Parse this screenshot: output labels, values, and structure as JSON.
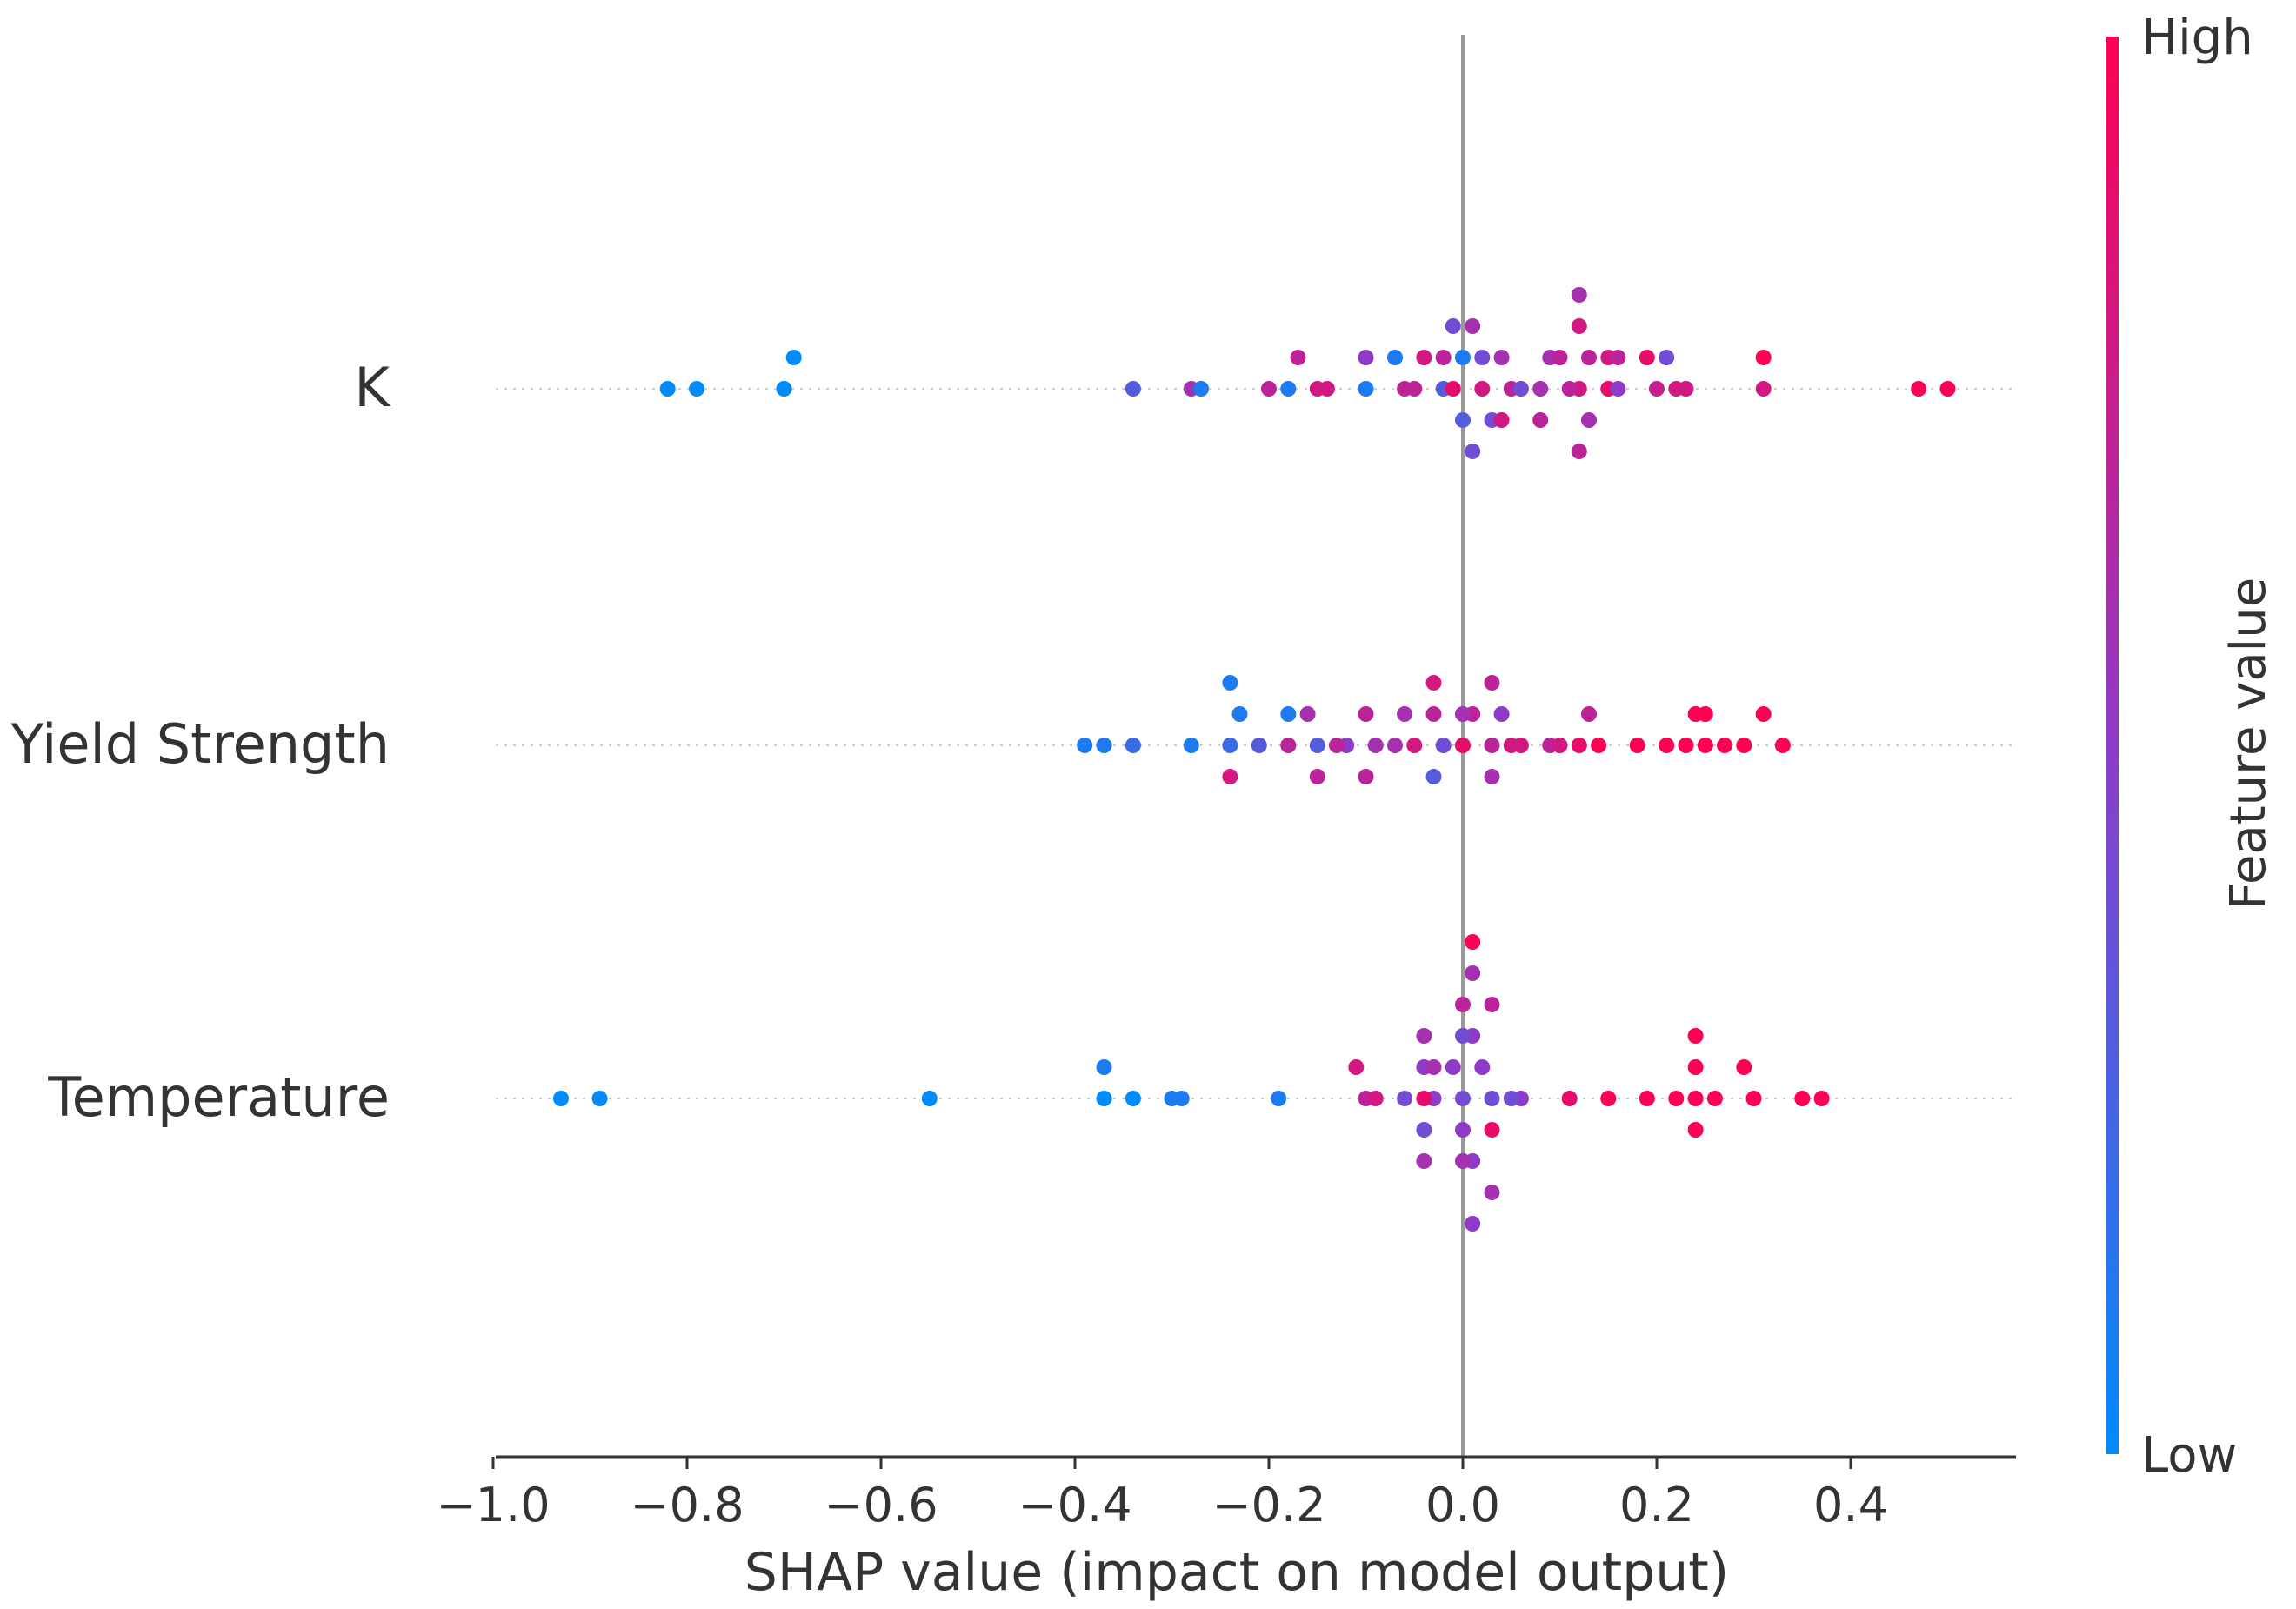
{
  "chart_data": {
    "type": "scatter",
    "subtype": "shap-beeswarm",
    "title": "",
    "xlabel": "SHAP value (impact on model output)",
    "ylabel": "",
    "xlim": [
      -1.02,
      0.57
    ],
    "xticks": [
      -1.0,
      -0.8,
      -0.6,
      -0.4,
      -0.2,
      0.0,
      0.2,
      0.4
    ],
    "xtick_labels": [
      "−1.0",
      "−0.8",
      "−0.6",
      "−0.4",
      "−0.2",
      "0.0",
      "0.2",
      "0.4"
    ],
    "colorbar": {
      "label": "Feature value",
      "high_label": "High",
      "low_label": "Low",
      "low_color": "#008bfb",
      "high_color": "#ff0052"
    },
    "features": [
      {
        "name": "K",
        "points": [
          {
            "x": -0.82,
            "v": 0.0
          },
          {
            "x": -0.79,
            "v": 0.0
          },
          {
            "x": -0.7,
            "v": 0.0
          },
          {
            "x": -0.69,
            "v": 0.0
          },
          {
            "x": -0.34,
            "v": 0.3
          },
          {
            "x": -0.28,
            "v": 0.6
          },
          {
            "x": -0.27,
            "v": 0.1
          },
          {
            "x": -0.2,
            "v": 0.7
          },
          {
            "x": -0.18,
            "v": 0.1
          },
          {
            "x": -0.15,
            "v": 0.8
          },
          {
            "x": -0.1,
            "v": 0.1
          },
          {
            "x": -0.05,
            "v": 0.7
          },
          {
            "x": -0.02,
            "v": 0.3
          },
          {
            "x": -0.01,
            "v": 0.9
          },
          {
            "x": 0.02,
            "v": 0.8
          },
          {
            "x": 0.05,
            "v": 0.7
          },
          {
            "x": 0.08,
            "v": 0.6
          },
          {
            "x": 0.12,
            "v": 0.8
          },
          {
            "x": 0.15,
            "v": 0.9
          },
          {
            "x": 0.2,
            "v": 0.75
          },
          {
            "x": 0.23,
            "v": 0.8
          },
          {
            "x": 0.31,
            "v": 0.8
          },
          {
            "x": 0.47,
            "v": 1.0
          },
          {
            "x": 0.5,
            "v": 1.0
          },
          {
            "x": -0.17,
            "v": 0.7
          },
          {
            "x": -0.14,
            "v": 0.8
          },
          {
            "x": -0.1,
            "v": 0.5
          },
          {
            "x": -0.06,
            "v": 0.7
          },
          {
            "x": -0.04,
            "v": 0.8
          },
          {
            "x": 0.0,
            "v": 0.1
          },
          {
            "x": 0.02,
            "v": 0.4
          },
          {
            "x": 0.04,
            "v": 0.6
          },
          {
            "x": 0.09,
            "v": 0.6
          },
          {
            "x": 0.11,
            "v": 0.7
          },
          {
            "x": 0.13,
            "v": 0.7
          },
          {
            "x": 0.15,
            "v": 0.8
          },
          {
            "x": 0.19,
            "v": 0.9
          },
          {
            "x": 0.22,
            "v": 0.8
          },
          {
            "x": 0.31,
            "v": 1.0
          },
          {
            "x": 0.0,
            "v": 0.3
          },
          {
            "x": 0.03,
            "v": 0.4
          },
          {
            "x": 0.06,
            "v": 0.4
          },
          {
            "x": 0.1,
            "v": 0.7
          },
          {
            "x": 0.13,
            "v": 0.6
          },
          {
            "x": 0.16,
            "v": 0.5
          },
          {
            "x": 0.12,
            "v": 0.8
          },
          {
            "x": -0.07,
            "v": 0.1
          },
          {
            "x": -0.02,
            "v": 0.7
          },
          {
            "x": 0.01,
            "v": 0.6
          },
          {
            "x": 0.04,
            "v": 0.8
          },
          {
            "x": 0.08,
            "v": 0.7
          },
          {
            "x": 0.12,
            "v": 0.7
          },
          {
            "x": 0.16,
            "v": 0.7
          },
          {
            "x": 0.21,
            "v": 0.4
          },
          {
            "x": -0.01,
            "v": 0.4
          },
          {
            "x": 0.01,
            "v": 0.4
          },
          {
            "x": 0.12,
            "v": 0.6
          }
        ]
      },
      {
        "name": "Yield Strength",
        "points": [
          {
            "x": -0.39,
            "v": 0.1
          },
          {
            "x": -0.37,
            "v": 0.1
          },
          {
            "x": -0.34,
            "v": 0.2
          },
          {
            "x": -0.28,
            "v": 0.1
          },
          {
            "x": -0.24,
            "v": 0.2
          },
          {
            "x": -0.21,
            "v": 0.3
          },
          {
            "x": -0.18,
            "v": 0.7
          },
          {
            "x": -0.15,
            "v": 0.3
          },
          {
            "x": -0.12,
            "v": 0.5
          },
          {
            "x": -0.09,
            "v": 0.6
          },
          {
            "x": -0.05,
            "v": 0.8
          },
          {
            "x": -0.02,
            "v": 0.4
          },
          {
            "x": 0.0,
            "v": 0.9
          },
          {
            "x": 0.03,
            "v": 0.7
          },
          {
            "x": 0.06,
            "v": 0.8
          },
          {
            "x": 0.09,
            "v": 0.7
          },
          {
            "x": 0.12,
            "v": 0.9
          },
          {
            "x": 0.18,
            "v": 1.0
          },
          {
            "x": 0.21,
            "v": 1.0
          },
          {
            "x": 0.23,
            "v": 1.0
          },
          {
            "x": 0.25,
            "v": 1.0
          },
          {
            "x": 0.27,
            "v": 1.0
          },
          {
            "x": 0.29,
            "v": 1.0
          },
          {
            "x": 0.31,
            "v": 1.0
          },
          {
            "x": 0.33,
            "v": 1.0
          },
          {
            "x": -0.23,
            "v": 0.1
          },
          {
            "x": -0.16,
            "v": 0.6
          },
          {
            "x": -0.13,
            "v": 0.7
          },
          {
            "x": -0.07,
            "v": 0.6
          },
          {
            "x": -0.03,
            "v": 0.7
          },
          {
            "x": 0.01,
            "v": 0.7
          },
          {
            "x": 0.05,
            "v": 0.8
          },
          {
            "x": 0.1,
            "v": 0.8
          },
          {
            "x": -0.24,
            "v": 0.8
          },
          {
            "x": -0.18,
            "v": 0.1
          },
          {
            "x": -0.15,
            "v": 0.7
          },
          {
            "x": -0.1,
            "v": 0.7
          },
          {
            "x": -0.06,
            "v": 0.6
          },
          {
            "x": -0.03,
            "v": 0.3
          },
          {
            "x": 0.0,
            "v": 0.6
          },
          {
            "x": 0.03,
            "v": 0.6
          },
          {
            "x": 0.14,
            "v": 1.0
          },
          {
            "x": 0.24,
            "v": 1.0
          },
          {
            "x": 0.25,
            "v": 1.0
          },
          {
            "x": 0.03,
            "v": 0.7
          },
          {
            "x": -0.24,
            "v": 0.1
          },
          {
            "x": -0.1,
            "v": 0.7
          },
          {
            "x": -0.03,
            "v": 0.8
          },
          {
            "x": 0.04,
            "v": 0.5
          },
          {
            "x": 0.13,
            "v": 0.7
          }
        ]
      },
      {
        "name": "Temperature",
        "points": [
          {
            "x": -0.93,
            "v": 0.0
          },
          {
            "x": -0.89,
            "v": 0.0
          },
          {
            "x": -0.55,
            "v": 0.0
          },
          {
            "x": -0.37,
            "v": 0.0
          },
          {
            "x": -0.34,
            "v": 0.0
          },
          {
            "x": -0.3,
            "v": 0.1
          },
          {
            "x": -0.29,
            "v": 0.1
          },
          {
            "x": -0.19,
            "v": 0.1
          },
          {
            "x": -0.1,
            "v": 0.7
          },
          {
            "x": -0.06,
            "v": 0.4
          },
          {
            "x": -0.03,
            "v": 0.5
          },
          {
            "x": 0.0,
            "v": 0.4
          },
          {
            "x": 0.03,
            "v": 0.4
          },
          {
            "x": 0.06,
            "v": 0.5
          },
          {
            "x": 0.11,
            "v": 0.9
          },
          {
            "x": 0.15,
            "v": 1.0
          },
          {
            "x": 0.19,
            "v": 1.0
          },
          {
            "x": 0.22,
            "v": 1.0
          },
          {
            "x": 0.26,
            "v": 1.0
          },
          {
            "x": 0.3,
            "v": 1.0
          },
          {
            "x": 0.35,
            "v": 1.0
          },
          {
            "x": 0.37,
            "v": 1.0
          },
          {
            "x": -0.37,
            "v": 0.1
          },
          {
            "x": -0.11,
            "v": 0.8
          },
          {
            "x": -0.09,
            "v": 0.8
          },
          {
            "x": -0.04,
            "v": 0.9
          },
          {
            "x": -0.01,
            "v": 0.5
          },
          {
            "x": 0.02,
            "v": 0.5
          },
          {
            "x": 0.05,
            "v": 0.4
          },
          {
            "x": 0.24,
            "v": 1.0
          },
          {
            "x": 0.29,
            "v": 1.0
          },
          {
            "x": -0.04,
            "v": 0.5
          },
          {
            "x": 0.0,
            "v": 0.5
          },
          {
            "x": 0.03,
            "v": 0.9
          },
          {
            "x": 0.24,
            "v": 1.0
          },
          {
            "x": -0.04,
            "v": 0.4
          },
          {
            "x": 0.01,
            "v": 0.5
          },
          {
            "x": 0.0,
            "v": 0.4
          },
          {
            "x": 0.01,
            "v": 0.5
          },
          {
            "x": -0.04,
            "v": 0.6
          },
          {
            "x": 0.0,
            "v": 0.6
          },
          {
            "x": 0.03,
            "v": 0.7
          },
          {
            "x": 0.24,
            "v": 1.0
          },
          {
            "x": -0.04,
            "v": 0.6
          },
          {
            "x": 0.0,
            "v": 0.7
          },
          {
            "x": 0.03,
            "v": 0.6
          },
          {
            "x": 0.24,
            "v": 1.0
          },
          {
            "x": -0.03,
            "v": 0.6
          },
          {
            "x": 0.01,
            "v": 0.6
          },
          {
            "x": 0.01,
            "v": 0.5
          },
          {
            "x": 0.01,
            "v": 1.0
          }
        ]
      }
    ]
  }
}
